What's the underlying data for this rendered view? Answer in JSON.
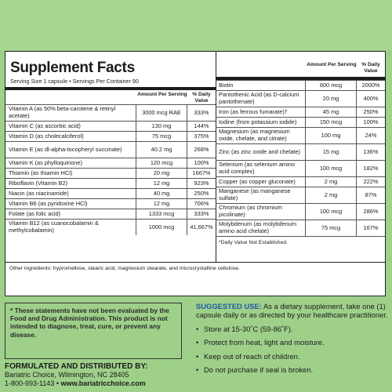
{
  "facts": {
    "title": "Supplement Facts",
    "serving": "Serving Size 1 capsule • Servings Per Container 90",
    "col_amount": "Amount Per Serving",
    "col_dv": "% Daily Value",
    "left_rows": [
      {
        "name": "Vitamin A (as 50% beta-carotene & retinyl acetate)",
        "amount": "3000 mcg RAE",
        "dv": "333%"
      },
      {
        "name": "Vitamin C (as ascorbic acid)",
        "amount": "130 mg",
        "dv": "144%"
      },
      {
        "name": "Vitamin D (as cholecalciferol)",
        "amount": "75 mcg",
        "dv": "375%"
      },
      {
        "name": "Vitamin E (as dl-alpha-tocopheryl succinate)",
        "amount": "40.2 mg",
        "dv": "268%"
      },
      {
        "name": "Vitamin K (as phylloquinone)",
        "amount": "120 mcg",
        "dv": "100%"
      },
      {
        "name": "Thiamin (as thiamin HCl)",
        "amount": "20 mg",
        "dv": "1667%"
      },
      {
        "name": "Riboflavin (Vitamin B2)",
        "amount": "12 mg",
        "dv": "923%"
      },
      {
        "name": "Niacin (as niacinamide)",
        "amount": "40 mg",
        "dv": "250%"
      },
      {
        "name": "Vitamin B6 (as pyridoxine HCl)",
        "amount": "12 mg",
        "dv": "706%"
      },
      {
        "name": "Folate (as folic acid)",
        "amount": "1333 mcg",
        "dv": "333%"
      },
      {
        "name": "Vitamin B12 (as cuanocobalamin & methylcobalamin)",
        "amount": "1000 mcg",
        "dv": "41,667%"
      }
    ],
    "right_rows": [
      {
        "name": "Biotin",
        "amount": "600 mcg",
        "dv": "2000%"
      },
      {
        "name": "Pantothenic Acid (as D-calcium pantothenate)",
        "amount": "20 mg",
        "dv": "400%"
      },
      {
        "name": "Iron (as ferrous fumarate)†",
        "amount": "45 mg",
        "dv": "250%"
      },
      {
        "name": "Iodine (from potassium iodide)",
        "amount": "150 mcg",
        "dv": "100%"
      },
      {
        "name": "Magnesium (as magnesium oxide, chelate, and citrate)",
        "amount": "100 mg",
        "dv": "24%"
      },
      {
        "name": "Zinc (as zinc oxide and chelate)",
        "amount": "15 mg",
        "dv": "136%"
      },
      {
        "name": "Selenium (as selenium amino acid complex)",
        "amount": "100 mcg",
        "dv": "182%"
      },
      {
        "name": "Copper (as copper gluconate)",
        "amount": "2 mg",
        "dv": "222%"
      },
      {
        "name": "Manganese (as manganese sulfate)",
        "amount": "2 mg",
        "dv": "87%"
      },
      {
        "name": "Chromium (as chromium picolinate)",
        "amount": "100 mcg",
        "dv": "286%"
      },
      {
        "name": "Molybdenum (as molybdenum amino acid chelate)",
        "amount": "75 mcg",
        "dv": "167%"
      }
    ],
    "footnote": "*Daily Value Not Established.",
    "other": "Other ingredients: hypromellose, stearic acid, magnesium stearate, and microcrystalline cellulose."
  },
  "fda": "* These statements have not been evaluated by the Food and Drug Administration. This product is not intended to diagnose, treat, cure, or prevent any disease.",
  "distributor": {
    "heading": "FORMULATED AND DISTRIBUTED BY:",
    "address": "Bariatric Choice, Wilmington, NC 28405",
    "phone": "1-800-993-1143",
    "sep": "•",
    "web": "www.bariatricchoice.com"
  },
  "use": {
    "label": "SUGGESTED USE:",
    "text": "As a dietary supplement, take one (1) capsule daily or as directed by your healthcare practitioner.",
    "bullets": [
      "Store at 15-30˚C (59-86˚F).",
      "Protect from heat, light and moisture.",
      "Keep out of reach of children.",
      "Do not purchase if seal is broken."
    ],
    "bullet_char": "•"
  }
}
